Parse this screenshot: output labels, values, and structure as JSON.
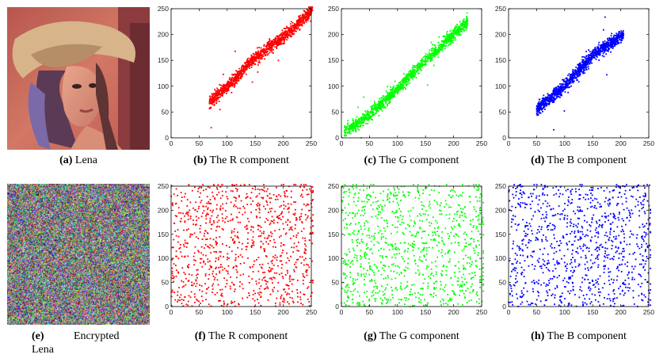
{
  "captions": {
    "a": {
      "tag": "(a)",
      "text": "Lena"
    },
    "b": {
      "tag": "(b)",
      "text": "The R component"
    },
    "c": {
      "tag": "(c)",
      "text": "The G component"
    },
    "d": {
      "tag": "(d)",
      "text": "The B component"
    },
    "e": {
      "tag": "(e)",
      "text": "Encrypted",
      "text2": "Lena"
    },
    "f": {
      "tag": "(f)",
      "text": "The R component"
    },
    "g": {
      "tag": "(g)",
      "text": "The G component"
    },
    "h": {
      "tag": "(h)",
      "text": "The B component"
    }
  },
  "colors": {
    "r": "#ff0000",
    "g": "#00ff00",
    "b": "#0000ff"
  },
  "chart_data": [
    {
      "id": "b",
      "type": "scatter",
      "series_color": "#ff0000",
      "pattern": "correlated",
      "xlim": [
        0,
        250
      ],
      "ylim": [
        0,
        250
      ],
      "xticks": [
        0,
        50,
        100,
        150,
        200,
        250
      ],
      "yticks": [
        0,
        50,
        100,
        150,
        200,
        250
      ],
      "x_range": [
        68,
        252
      ],
      "trend_center": [
        [
          70,
          70
        ],
        [
          100,
          100
        ],
        [
          150,
          155
        ],
        [
          200,
          195
        ],
        [
          250,
          245
        ]
      ]
    },
    {
      "id": "c",
      "type": "scatter",
      "series_color": "#00ff00",
      "pattern": "correlated",
      "xlim": [
        0,
        250
      ],
      "ylim": [
        0,
        250
      ],
      "xticks": [
        0,
        50,
        100,
        150,
        200,
        250
      ],
      "yticks": [
        0,
        50,
        100,
        150,
        200,
        250
      ],
      "x_range": [
        5,
        225
      ],
      "trend_center": [
        [
          5,
          10
        ],
        [
          50,
          45
        ],
        [
          100,
          95
        ],
        [
          150,
          150
        ],
        [
          200,
          200
        ],
        [
          225,
          225
        ]
      ]
    },
    {
      "id": "d",
      "type": "scatter",
      "series_color": "#0000ff",
      "pattern": "correlated",
      "xlim": [
        0,
        250
      ],
      "ylim": [
        0,
        250
      ],
      "xticks": [
        0,
        50,
        100,
        150,
        200,
        250
      ],
      "yticks": [
        0,
        50,
        100,
        150,
        200,
        250
      ],
      "x_range": [
        50,
        205
      ],
      "trend_center": [
        [
          50,
          55
        ],
        [
          100,
          100
        ],
        [
          150,
          160
        ],
        [
          205,
          200
        ]
      ]
    },
    {
      "id": "f",
      "type": "scatter",
      "series_color": "#ff0000",
      "pattern": "uniform",
      "xlim": [
        0,
        250
      ],
      "ylim": [
        0,
        250
      ],
      "xticks": [
        0,
        50,
        100,
        150,
        200,
        250
      ],
      "yticks": [
        0,
        50,
        100,
        150,
        200,
        250
      ]
    },
    {
      "id": "g",
      "type": "scatter",
      "series_color": "#00ff00",
      "pattern": "uniform",
      "xlim": [
        0,
        250
      ],
      "ylim": [
        0,
        250
      ],
      "xticks": [
        0,
        50,
        100,
        150,
        200,
        250
      ],
      "yticks": [
        0,
        50,
        100,
        150,
        200,
        250
      ]
    },
    {
      "id": "h",
      "type": "scatter",
      "series_color": "#0000ff",
      "pattern": "uniform",
      "xlim": [
        0,
        250
      ],
      "ylim": [
        0,
        250
      ],
      "xticks": [
        0,
        50,
        100,
        150,
        200,
        250
      ],
      "yticks": [
        0,
        50,
        100,
        150,
        200,
        250
      ]
    }
  ]
}
